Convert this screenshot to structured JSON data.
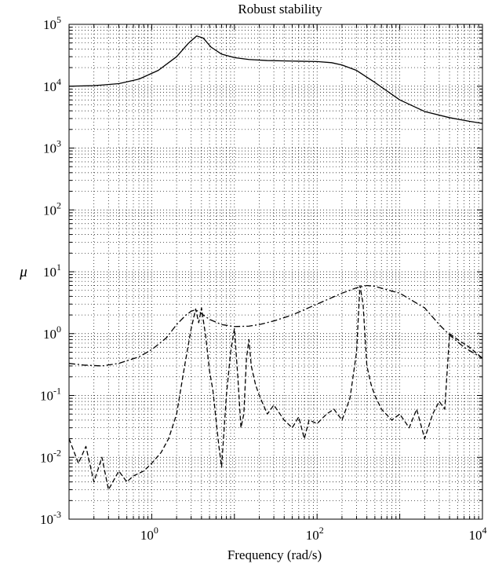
{
  "chart_data": {
    "type": "line",
    "title": "Robust stability",
    "xlabel": "Frequency (rad/s)",
    "ylabel": "μ",
    "xscale": "log",
    "yscale": "log",
    "xlim": [
      0.1,
      10000
    ],
    "ylim": [
      0.001,
      100000
    ],
    "grid": true,
    "x_ticks": [
      {
        "base": "10",
        "exp": "0",
        "value": 1
      },
      {
        "base": "10",
        "exp": "2",
        "value": 100
      },
      {
        "base": "10",
        "exp": "4",
        "value": 10000
      }
    ],
    "y_ticks": [
      {
        "base": "10",
        "exp": "5",
        "value": 100000
      },
      {
        "base": "10",
        "exp": "4",
        "value": 10000
      },
      {
        "base": "10",
        "exp": "3",
        "value": 1000
      },
      {
        "base": "10",
        "exp": "2",
        "value": 100
      },
      {
        "base": "10",
        "exp": "1",
        "value": 10
      },
      {
        "base": "10",
        "exp": "0",
        "value": 1
      },
      {
        "base": "10",
        "exp": "-1",
        "value": 0.1
      },
      {
        "base": "10",
        "exp": "-2",
        "value": 0.01
      },
      {
        "base": "10",
        "exp": "-3",
        "value": 0.001
      }
    ],
    "series": [
      {
        "style": "solid",
        "x": [
          0.1,
          0.2,
          0.4,
          0.7,
          1.2,
          2.0,
          2.8,
          3.5,
          4.2,
          5.2,
          7,
          10,
          15,
          25,
          50,
          100,
          150,
          200,
          300,
          500,
          1000,
          2000,
          4000,
          7000,
          10000
        ],
        "y": [
          10000,
          10200,
          11000,
          13000,
          18000,
          30000,
          50000,
          65000,
          60000,
          43000,
          33000,
          29000,
          27000,
          26000,
          25500,
          25000,
          24000,
          22000,
          18000,
          11500,
          6000,
          3900,
          3100,
          2700,
          2500
        ]
      },
      {
        "style": "dashdot",
        "x": [
          0.1,
          0.15,
          0.25,
          0.4,
          0.7,
          1.0,
          1.5,
          2.0,
          2.6,
          3.0,
          3.3,
          3.7,
          4.2,
          5,
          7,
          10,
          15,
          20,
          30,
          50,
          100,
          200,
          300,
          400,
          500,
          1000,
          2000,
          3000,
          4000,
          6000,
          10000
        ],
        "y": [
          0.33,
          0.31,
          0.3,
          0.33,
          0.42,
          0.55,
          0.85,
          1.4,
          2.0,
          2.3,
          2.4,
          2.3,
          2.0,
          1.7,
          1.4,
          1.3,
          1.32,
          1.4,
          1.6,
          2.0,
          3.0,
          4.5,
          5.5,
          6.0,
          5.8,
          4.5,
          2.6,
          1.4,
          0.95,
          0.6,
          0.4
        ]
      },
      {
        "style": "dashed",
        "x": [
          0.1,
          0.13,
          0.16,
          0.2,
          0.25,
          0.3,
          0.4,
          0.5,
          0.6,
          0.8,
          1.0,
          1.3,
          1.6,
          2.0,
          2.5,
          3.0,
          3.4,
          3.7,
          4.0,
          4.5,
          5.0,
          5.5,
          6.0,
          6.5,
          7.0,
          8.0,
          9.0,
          10,
          11,
          12,
          13,
          14,
          15,
          16,
          18,
          20,
          25,
          30,
          40,
          50,
          60,
          70,
          80,
          100,
          130,
          160,
          200,
          250,
          300,
          330,
          360,
          400,
          450,
          500,
          600,
          800,
          1000,
          1300,
          1600,
          2000,
          2500,
          3000,
          3500,
          4000,
          5000,
          7000,
          10000
        ],
        "y": [
          0.02,
          0.008,
          0.015,
          0.004,
          0.01,
          0.003,
          0.006,
          0.004,
          0.005,
          0.006,
          0.008,
          0.012,
          0.02,
          0.05,
          0.3,
          1.2,
          2.5,
          1.5,
          2.6,
          0.9,
          0.25,
          0.12,
          0.04,
          0.015,
          0.007,
          0.1,
          0.5,
          1.2,
          0.2,
          0.03,
          0.05,
          0.4,
          0.8,
          0.3,
          0.15,
          0.1,
          0.05,
          0.07,
          0.04,
          0.03,
          0.045,
          0.02,
          0.04,
          0.035,
          0.05,
          0.06,
          0.04,
          0.09,
          0.5,
          6.0,
          3.0,
          0.3,
          0.15,
          0.1,
          0.06,
          0.04,
          0.05,
          0.03,
          0.06,
          0.02,
          0.05,
          0.08,
          0.06,
          1.0,
          0.8,
          0.6,
          0.4
        ]
      }
    ]
  }
}
